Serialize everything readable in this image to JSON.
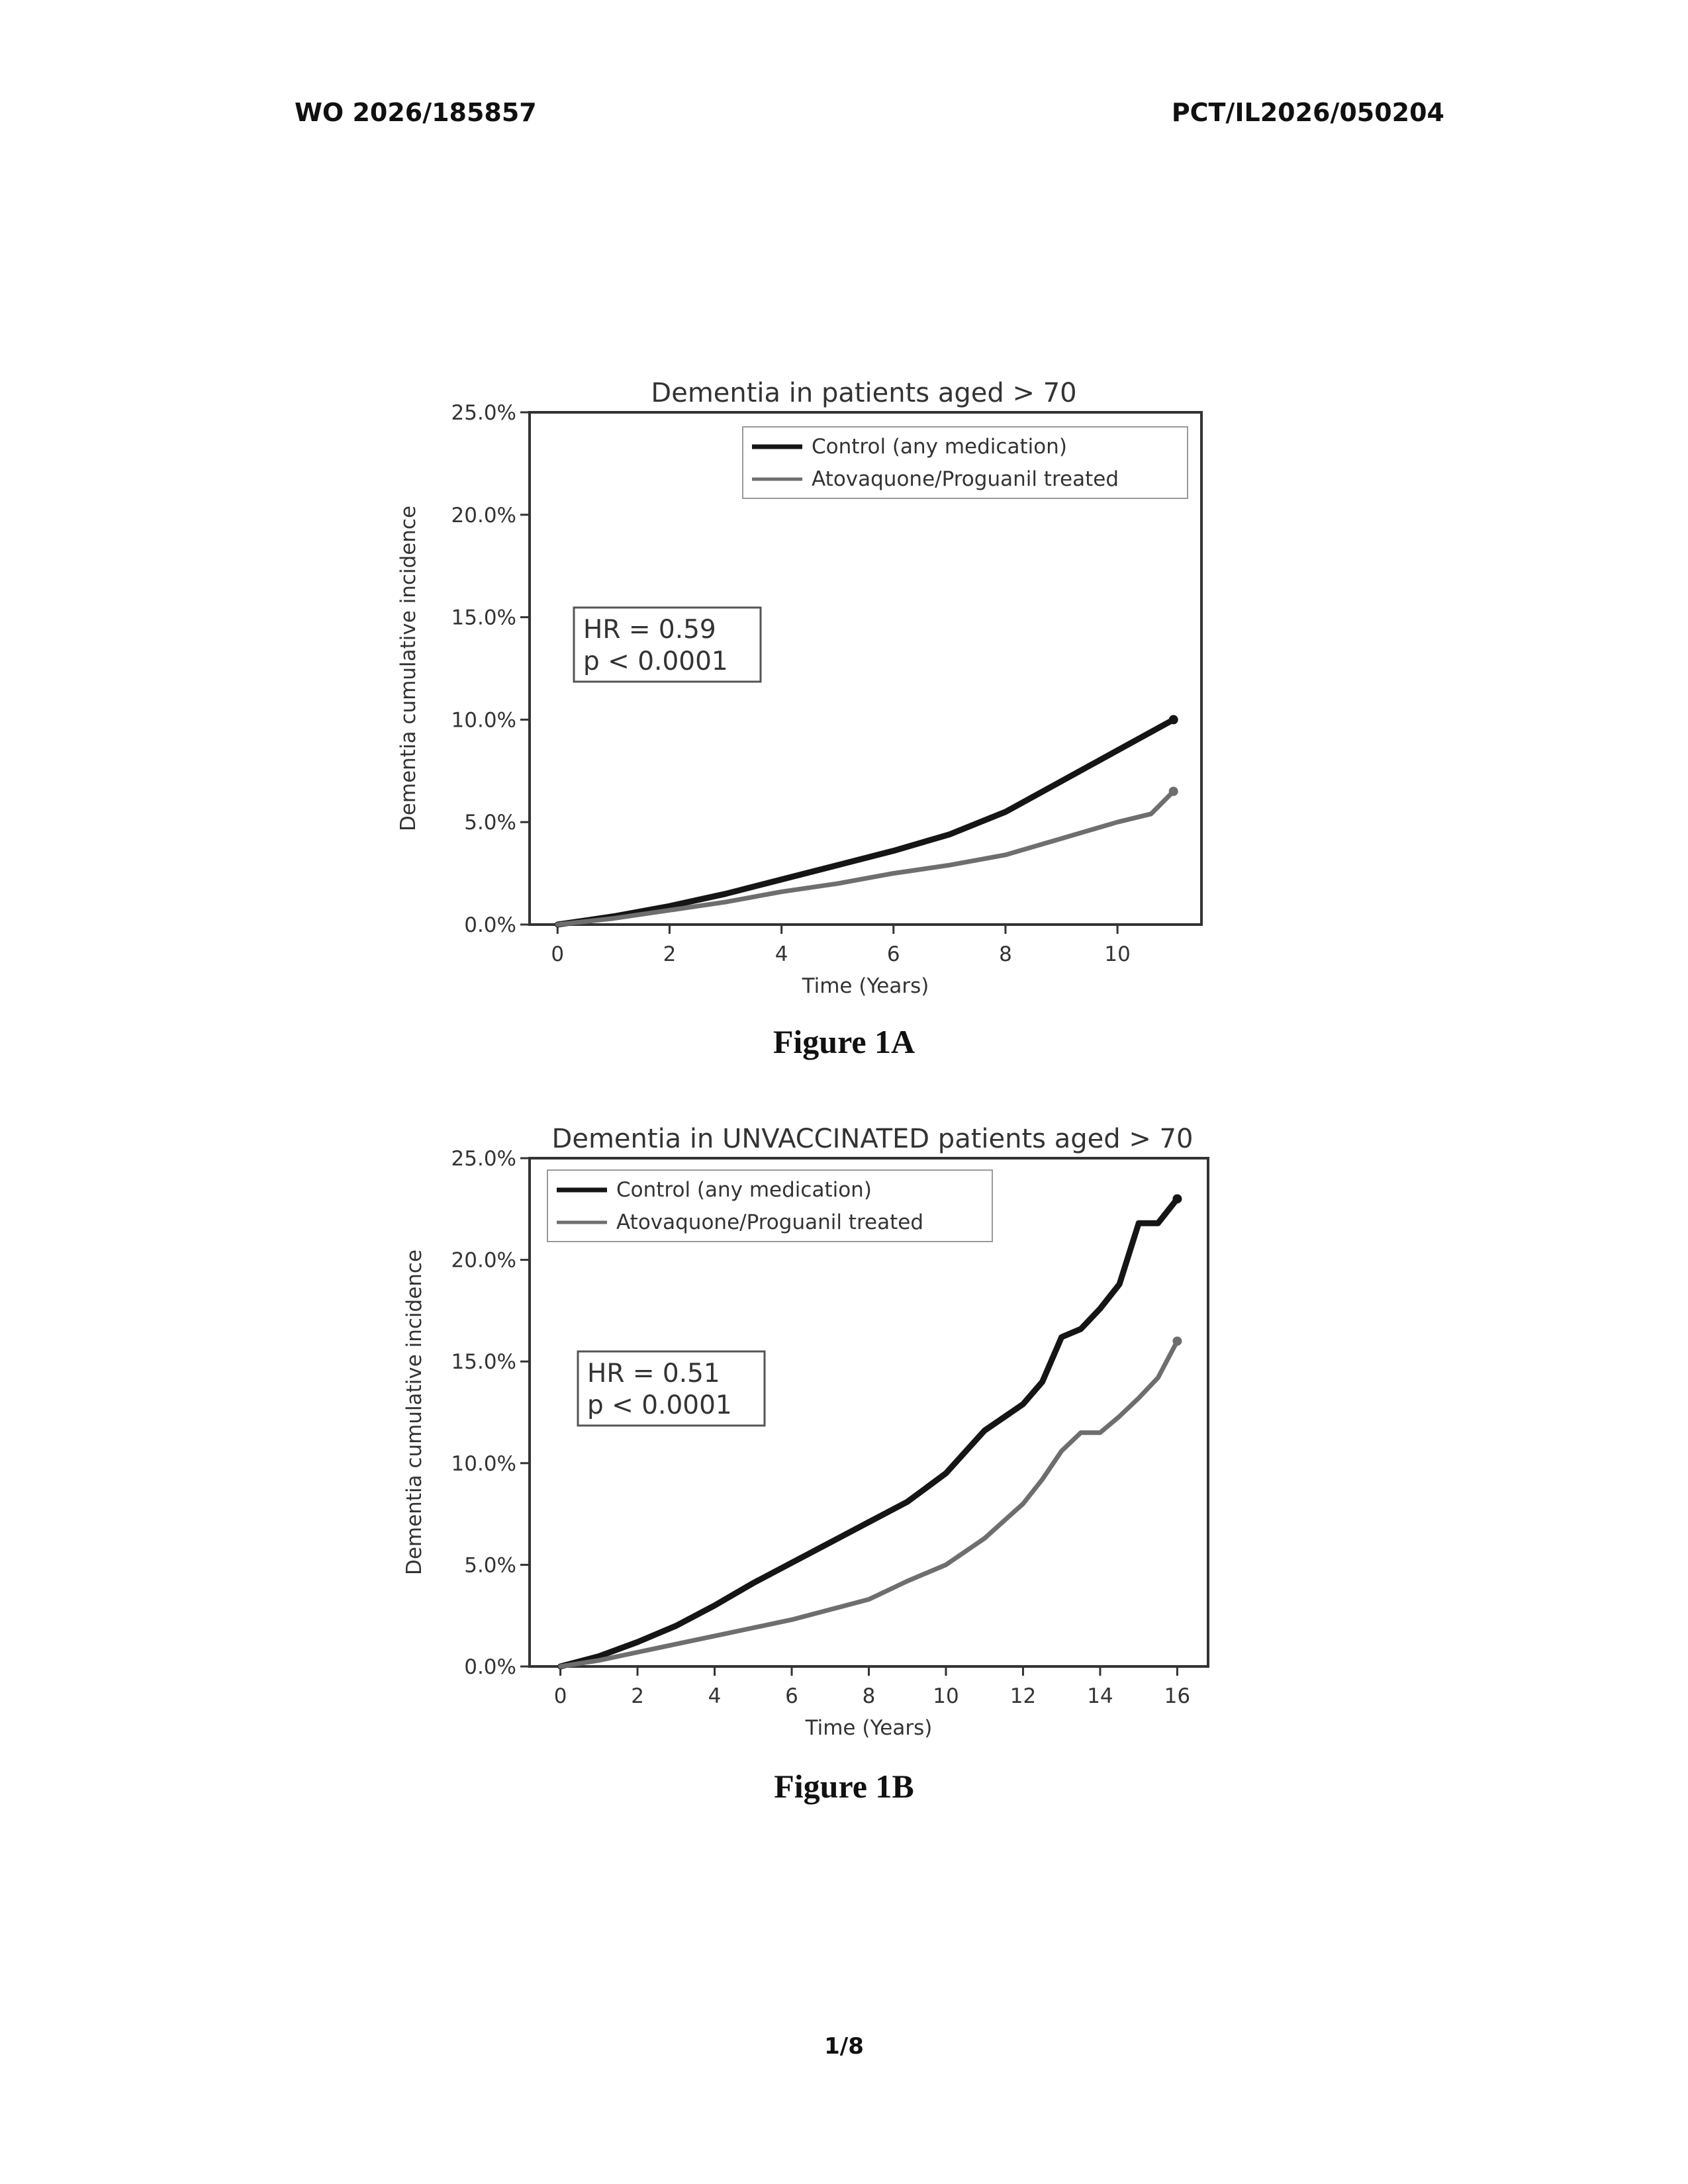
{
  "header": {
    "left": "WO 2026/185857",
    "right": "PCT/IL2026/050204"
  },
  "figures": [
    {
      "caption": "Figure 1A"
    },
    {
      "caption": "Figure 1B"
    }
  ],
  "page_number": "1/8",
  "colors": {
    "control": "#151515",
    "treated": "#6e6e6e",
    "axis": "#333333"
  },
  "chart_data": [
    {
      "type": "line",
      "title": "Dementia in patients aged > 70",
      "xlabel": "Time (Years)",
      "ylabel": "Dementia cumulative incidence",
      "xlim": [
        -0.5,
        11.5
      ],
      "ylim": [
        0,
        25
      ],
      "xticks": [
        0,
        2,
        4,
        6,
        8,
        10
      ],
      "yticks": [
        0,
        5,
        10,
        15,
        20,
        25
      ],
      "ytick_labels": [
        "0.0%",
        "5.0%",
        "10.0%",
        "15.0%",
        "20.0%",
        "25.0%"
      ],
      "legend": {
        "position": "top-right",
        "entries": [
          "Control (any medication)",
          "Atovaquone/Proguanil treated"
        ]
      },
      "annotation": {
        "position": "left",
        "lines": [
          "HR = 0.59",
          "p < 0.0001"
        ]
      },
      "series": [
        {
          "name": "Control (any medication)",
          "x": [
            0,
            1,
            2,
            3,
            4,
            5,
            6,
            7,
            8,
            9,
            10,
            11
          ],
          "y": [
            0,
            0.4,
            0.9,
            1.5,
            2.2,
            2.9,
            3.6,
            4.4,
            5.5,
            7.0,
            8.5,
            10.0
          ]
        },
        {
          "name": "Atovaquone/Proguanil treated",
          "x": [
            0,
            1,
            2,
            3,
            4,
            5,
            6,
            7,
            8,
            9,
            10,
            10.6,
            11
          ],
          "y": [
            0,
            0.3,
            0.7,
            1.1,
            1.6,
            2.0,
            2.5,
            2.9,
            3.4,
            4.2,
            5.0,
            5.4,
            6.5
          ]
        }
      ]
    },
    {
      "type": "line",
      "title": "Dementia in UNVACCINATED patients aged > 70",
      "xlabel": "Time (Years)",
      "ylabel": "Dementia cumulative incidence",
      "xlim": [
        -0.8,
        16.8
      ],
      "ylim": [
        0,
        25
      ],
      "xticks": [
        0,
        2,
        4,
        6,
        8,
        10,
        12,
        14,
        16
      ],
      "yticks": [
        0,
        5,
        10,
        15,
        20,
        25
      ],
      "ytick_labels": [
        "0.0%",
        "5.0%",
        "10.0%",
        "15.0%",
        "20.0%",
        "25.0%"
      ],
      "legend": {
        "position": "top-left",
        "entries": [
          "Control (any medication)",
          "Atovaquone/Proguanil treated"
        ]
      },
      "annotation": {
        "position": "left",
        "lines": [
          "HR = 0.51",
          "p < 0.0001"
        ]
      },
      "series": [
        {
          "name": "Control (any medication)",
          "x": [
            0,
            1,
            2,
            3,
            4,
            5,
            6,
            7,
            8,
            9,
            10,
            11,
            12,
            12.5,
            13,
            13.5,
            14,
            14.5,
            15,
            15.5,
            16
          ],
          "y": [
            0,
            0.5,
            1.2,
            2.0,
            3.0,
            4.1,
            5.1,
            6.1,
            7.1,
            8.1,
            9.5,
            11.6,
            12.9,
            14.0,
            16.2,
            16.6,
            17.6,
            18.8,
            21.8,
            21.8,
            23.0
          ]
        },
        {
          "name": "Atovaquone/Proguanil treated",
          "x": [
            0,
            1,
            2,
            3,
            4,
            5,
            6,
            7,
            8,
            9,
            10,
            11,
            12,
            12.5,
            13,
            13.5,
            14,
            14.5,
            15,
            15.5,
            16
          ],
          "y": [
            0,
            0.3,
            0.7,
            1.1,
            1.5,
            1.9,
            2.3,
            2.8,
            3.3,
            4.2,
            5.0,
            6.3,
            8.0,
            9.2,
            10.6,
            11.5,
            11.5,
            12.3,
            13.2,
            14.2,
            16.0
          ]
        }
      ]
    }
  ]
}
